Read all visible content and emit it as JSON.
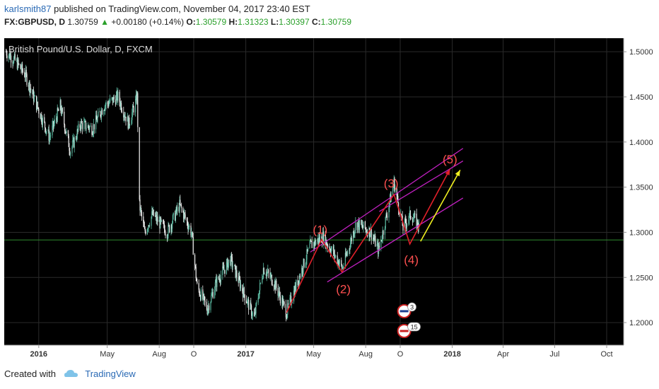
{
  "header": {
    "user": "karlsmith87",
    "published_text": "published on TradingView.com, November 04, 2017 23:40 EST"
  },
  "quote": {
    "symbol": "FX:GBPUSD, D",
    "price": "1.30759",
    "change": "+0.00180 (+0.14%)",
    "open_label": "O:",
    "open": "1.30579",
    "high_label": "H:",
    "high": "1.31323",
    "low_label": "L:",
    "low": "1.30397",
    "close_label": "C:",
    "close": "1.30759"
  },
  "footer": {
    "created_with": "Created with",
    "brand": "TradingView"
  },
  "colors": {
    "background": "#000000",
    "candle_up": "#5bb8a0",
    "candle_down": "#e8e8e8",
    "channel": "#c020c0",
    "wave_lines": "#e0202a",
    "projection": "#f0f020",
    "horizontal_line": "#2e8b2e",
    "wave_labels": "#ff5050"
  },
  "chart_data": {
    "type": "candlestick",
    "title": "British Pound/U.S. Dollar, D, FXCM",
    "x_ticks": [
      "2016",
      "May",
      "Aug",
      "O",
      "2017",
      "May",
      "Aug",
      "O",
      "2018",
      "Apr",
      "Jul",
      "Oct"
    ],
    "y_ticks": [
      "1.5000",
      "1.4500",
      "1.4000",
      "1.3500",
      "1.3000",
      "1.2500",
      "1.2000"
    ],
    "ylim": [
      1.175,
      1.515
    ],
    "horizontal_level": 1.2915,
    "close_path": [
      {
        "x": "2015-11-04",
        "y": 1.5
      },
      {
        "x": "2015-11-20",
        "y": 1.49
      },
      {
        "x": "2015-12-08",
        "y": 1.475
      },
      {
        "x": "2015-12-29",
        "y": 1.44
      },
      {
        "x": "2016-01-20",
        "y": 1.405
      },
      {
        "x": "2016-02-08",
        "y": 1.44
      },
      {
        "x": "2016-02-26",
        "y": 1.39
      },
      {
        "x": "2016-03-15",
        "y": 1.42
      },
      {
        "x": "2016-04-05",
        "y": 1.415
      },
      {
        "x": "2016-04-25",
        "y": 1.44
      },
      {
        "x": "2016-05-20",
        "y": 1.45
      },
      {
        "x": "2016-06-08",
        "y": 1.42
      },
      {
        "x": "2016-06-23",
        "y": 1.45
      },
      {
        "x": "2016-06-27",
        "y": 1.33
      },
      {
        "x": "2016-07-06",
        "y": 1.3
      },
      {
        "x": "2016-07-20",
        "y": 1.32
      },
      {
        "x": "2016-08-15",
        "y": 1.3
      },
      {
        "x": "2016-09-06",
        "y": 1.33
      },
      {
        "x": "2016-09-27",
        "y": 1.3
      },
      {
        "x": "2016-10-07",
        "y": 1.24
      },
      {
        "x": "2016-10-25",
        "y": 1.215
      },
      {
        "x": "2016-11-10",
        "y": 1.245
      },
      {
        "x": "2016-12-05",
        "y": 1.27
      },
      {
        "x": "2016-12-30",
        "y": 1.23
      },
      {
        "x": "2017-01-16",
        "y": 1.205
      },
      {
        "x": "2017-02-01",
        "y": 1.26
      },
      {
        "x": "2017-02-20",
        "y": 1.245
      },
      {
        "x": "2017-03-14",
        "y": 1.211
      },
      {
        "x": "2017-04-05",
        "y": 1.25
      },
      {
        "x": "2017-04-25",
        "y": 1.285
      },
      {
        "x": "2017-05-17",
        "y": 1.295
      },
      {
        "x": "2017-06-02",
        "y": 1.28
      },
      {
        "x": "2017-06-21",
        "y": 1.26
      },
      {
        "x": "2017-07-15",
        "y": 1.31
      },
      {
        "x": "2017-08-10",
        "y": 1.3
      },
      {
        "x": "2017-08-24",
        "y": 1.28
      },
      {
        "x": "2017-09-20",
        "y": 1.355
      },
      {
        "x": "2017-10-06",
        "y": 1.305
      },
      {
        "x": "2017-10-20",
        "y": 1.32
      },
      {
        "x": "2017-11-03",
        "y": 1.3076
      }
    ],
    "wave_labels": [
      {
        "label": "(1)",
        "x": "2017-05-15",
        "y": 1.292
      },
      {
        "label": "(2)",
        "x": "2017-06-20",
        "y": 1.256
      },
      {
        "label": "(3)",
        "x": "2017-09-20",
        "y": 1.342
      },
      {
        "label": "(4)",
        "x": "2017-10-18",
        "y": 1.287
      },
      {
        "label": "(5)",
        "x": "2017-12-28",
        "y": 1.37
      }
    ],
    "wave_path": [
      {
        "x": "2017-03-14",
        "y": 1.211
      },
      {
        "x": "2017-05-15",
        "y": 1.292
      },
      {
        "x": "2017-06-20",
        "y": 1.256
      },
      {
        "x": "2017-09-20",
        "y": 1.342
      },
      {
        "x": "2017-10-18",
        "y": 1.287
      },
      {
        "x": "2017-12-28",
        "y": 1.37
      }
    ],
    "projection_arrow": [
      {
        "x": "2017-11-06",
        "y": 1.29
      },
      {
        "x": "2018-01-15",
        "y": 1.369
      }
    ],
    "channel_lines": [
      [
        {
          "x": "2017-04-25",
          "y": 1.278
        },
        {
          "x": "2018-01-20",
          "y": 1.393
        }
      ],
      [
        {
          "x": "2017-05-25",
          "y": 1.245
        },
        {
          "x": "2018-01-20",
          "y": 1.338
        }
      ],
      [
        {
          "x": "2017-08-25",
          "y": 1.323
        },
        {
          "x": "2018-01-20",
          "y": 1.379
        }
      ]
    ],
    "event_markers": [
      {
        "region": "GB",
        "count": "3"
      },
      {
        "region": "US",
        "count": "15"
      }
    ]
  }
}
